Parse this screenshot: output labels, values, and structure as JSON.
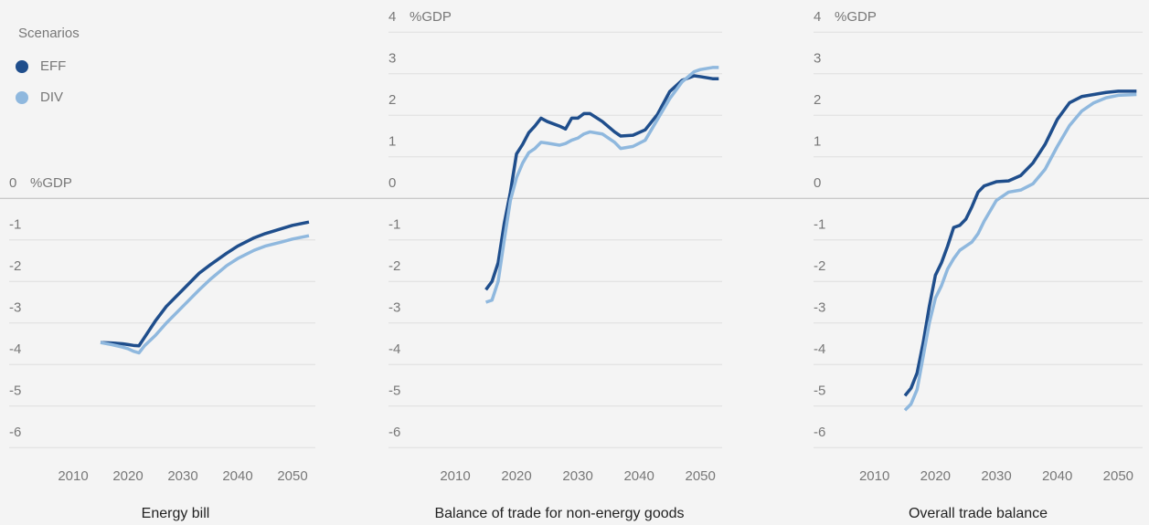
{
  "chart_data": [
    {
      "type": "line",
      "title": "Energy bill",
      "ylabel": "%GDP",
      "legend_title": "Scenarios",
      "x": [
        2015,
        2017,
        2019,
        2020,
        2021,
        2022,
        2023,
        2025,
        2027,
        2030,
        2033,
        2035,
        2038,
        2040,
        2043,
        2045,
        2048,
        2050,
        2053
      ],
      "series": [
        {
          "name": "EFF",
          "color": "#1f4e8c",
          "values": [
            -3.47,
            -3.48,
            -3.5,
            -3.52,
            -3.54,
            -3.55,
            -3.35,
            -2.95,
            -2.6,
            -2.2,
            -1.8,
            -1.6,
            -1.32,
            -1.15,
            -0.95,
            -0.85,
            -0.73,
            -0.65,
            -0.57
          ]
        },
        {
          "name": "DIV",
          "color": "#8fb8de",
          "values": [
            -3.47,
            -3.52,
            -3.58,
            -3.62,
            -3.68,
            -3.72,
            -3.55,
            -3.3,
            -3.0,
            -2.6,
            -2.2,
            -1.95,
            -1.62,
            -1.45,
            -1.25,
            -1.15,
            -1.05,
            -0.98,
            -0.9
          ]
        }
      ],
      "xlim": [
        2000,
        2054
      ],
      "xticks": [
        2010,
        2020,
        2030,
        2040,
        2050
      ],
      "ylim": [
        -6.5,
        0
      ],
      "yticks": [
        0,
        -1,
        -2,
        -3,
        -4,
        -5,
        -6
      ],
      "grid": true
    },
    {
      "type": "line",
      "title": "Balance of trade for non-energy goods",
      "ylabel": "%GDP",
      "x": [
        2015,
        2016,
        2017,
        2018,
        2019,
        2020,
        2021,
        2022,
        2023,
        2024,
        2025,
        2027,
        2028,
        2029,
        2030,
        2031,
        2032,
        2034,
        2036,
        2037,
        2039,
        2041,
        2043,
        2045,
        2047,
        2049,
        2050,
        2052,
        2053
      ],
      "series": [
        {
          "color": "#1f4e8c",
          "values": [
            -2.2,
            -2.0,
            -1.55,
            -0.6,
            0.15,
            1.07,
            1.3,
            1.58,
            1.74,
            1.93,
            1.85,
            1.74,
            1.67,
            1.93,
            1.93,
            2.04,
            2.04,
            1.85,
            1.6,
            1.5,
            1.52,
            1.65,
            2.02,
            2.57,
            2.84,
            2.95,
            2.93,
            2.88,
            2.88
          ]
        },
        {
          "color": "#8fb8de",
          "values": [
            -2.5,
            -2.45,
            -2.0,
            -1.0,
            -0.05,
            0.5,
            0.85,
            1.1,
            1.2,
            1.35,
            1.33,
            1.28,
            1.32,
            1.4,
            1.45,
            1.55,
            1.6,
            1.55,
            1.35,
            1.2,
            1.25,
            1.4,
            1.9,
            2.4,
            2.8,
            3.05,
            3.1,
            3.15,
            3.15
          ]
        }
      ],
      "xlim": [
        2000,
        2054
      ],
      "xticks": [
        2010,
        2020,
        2030,
        2040,
        2050
      ],
      "ylim": [
        -6.5,
        4
      ],
      "yticks": [
        4,
        3,
        2,
        1,
        0,
        -1,
        -2,
        -3,
        -4,
        -5,
        -6
      ],
      "grid": true
    },
    {
      "type": "line",
      "title": "Overall trade balance",
      "ylabel": "%GDP",
      "x": [
        2015,
        2016,
        2017,
        2018,
        2019,
        2020,
        2021,
        2022,
        2023,
        2024,
        2025,
        2026,
        2027,
        2028,
        2030,
        2032,
        2034,
        2036,
        2038,
        2040,
        2042,
        2044,
        2046,
        2048,
        2050,
        2053
      ],
      "series": [
        {
          "color": "#1f4e8c",
          "values": [
            -4.75,
            -4.57,
            -4.2,
            -3.47,
            -2.6,
            -1.85,
            -1.55,
            -1.15,
            -0.7,
            -0.65,
            -0.5,
            -0.2,
            0.15,
            0.3,
            0.4,
            0.42,
            0.55,
            0.85,
            1.3,
            1.9,
            2.3,
            2.45,
            2.5,
            2.55,
            2.58,
            2.58
          ]
        },
        {
          "color": "#8fb8de",
          "values": [
            -5.1,
            -4.95,
            -4.6,
            -3.8,
            -3.0,
            -2.4,
            -2.1,
            -1.7,
            -1.45,
            -1.25,
            -1.15,
            -1.05,
            -0.85,
            -0.55,
            -0.05,
            0.15,
            0.2,
            0.35,
            0.7,
            1.25,
            1.75,
            2.1,
            2.3,
            2.42,
            2.48,
            2.5
          ]
        }
      ],
      "xlim": [
        2000,
        2054
      ],
      "xticks": [
        2010,
        2020,
        2030,
        2040,
        2050
      ],
      "ylim": [
        -6.5,
        4
      ],
      "yticks": [
        4,
        3,
        2,
        1,
        0,
        -1,
        -2,
        -3,
        -4,
        -5,
        -6
      ],
      "grid": true
    }
  ]
}
